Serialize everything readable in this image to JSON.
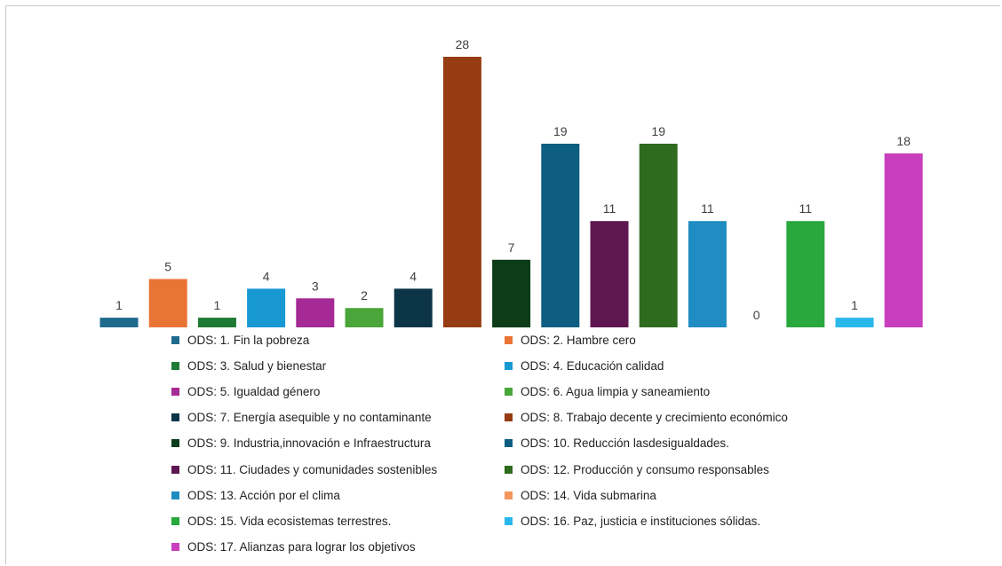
{
  "chart_data": {
    "type": "bar",
    "title": "",
    "xlabel": "",
    "ylabel": "",
    "ylim": [
      0,
      28
    ],
    "grid": false,
    "legend_position": "bottom",
    "categories": [
      "ODS: 1. Fin la pobreza",
      "ODS: 2. Hambre cero",
      "ODS: 3. Salud y bienestar",
      "ODS: 4. Educación calidad",
      "ODS: 5. Igualdad género",
      "ODS: 6. Agua limpia y saneamiento",
      "ODS: 7. Energía asequible y no contaminante",
      "ODS: 8. Trabajo decente y crecimiento económico",
      "ODS: 9. Industria,innovación e Infraestructura",
      "ODS: 10. Reducción lasdesigualdades.",
      "ODS: 11. Ciudades y comunidades sostenibles",
      "ODS: 12. Producción y consumo responsables",
      "ODS: 13. Acción por el clima",
      "ODS: 14. Vida submarina",
      "ODS: 15. Vida ecosistemas terrestres.",
      "ODS: 16. Paz, justicia e instituciones sólidas.",
      "ODS: 17. Alianzas para lograr los objetivos"
    ],
    "values": [
      1,
      5,
      1,
      4,
      3,
      2,
      4,
      28,
      7,
      19,
      11,
      19,
      11,
      0,
      11,
      1,
      18
    ],
    "colors": [
      "#1e6a8c",
      "#ea7434",
      "#1f7a33",
      "#1899d4",
      "#a52a96",
      "#4aa63a",
      "#0d3548",
      "#963c12",
      "#0d3d18",
      "#0d5e80",
      "#5e1750",
      "#2e6b1f",
      "#1f8cc2",
      "#f4955c",
      "#28a83d",
      "#2ab7ec",
      "#c83ebd"
    ]
  }
}
